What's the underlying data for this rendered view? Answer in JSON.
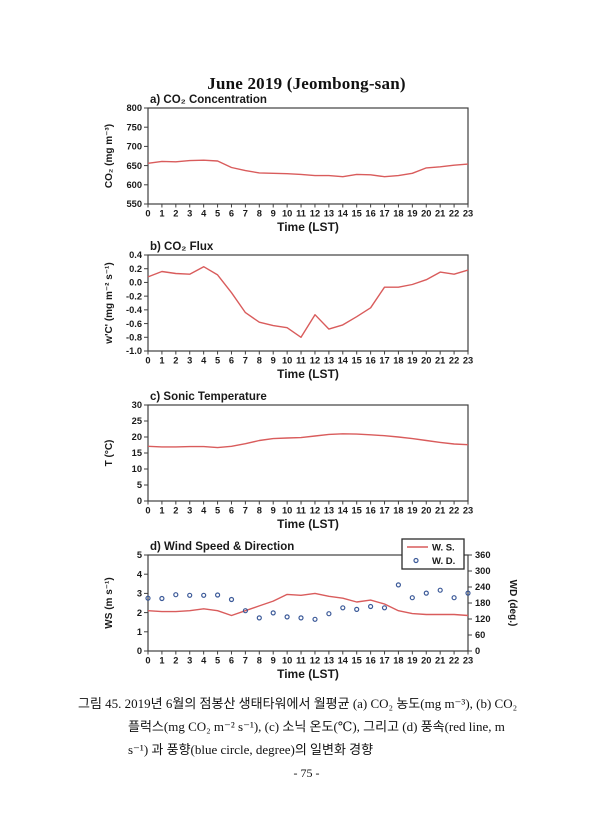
{
  "page": {
    "title": "June 2019 (Jeombong-san)",
    "page_number": "- 75 -"
  },
  "caption": {
    "lines": [
      "그림 45. 2019년 6월의 점봉산 생태타워에서 월평균 (a) CO₂ 농도(mg m⁻³), (b) CO₂",
      "플럭스(mg CO₂ m⁻² s⁻¹), (c) 소닉 온도(℃), 그리고 (d) 풍속(red line, m",
      "s⁻¹) 과 풍향(blue circle, degree)의 일변화 경향"
    ]
  },
  "colors": {
    "line_red": "#d95c5c",
    "marker_blue": "#3b5998",
    "axis": "#3f3f3f"
  },
  "chart_data": [
    {
      "id": "a",
      "type": "line",
      "title": "a) CO₂ Concentration",
      "xlabel": "Time (LST)",
      "ylabel": "CO₂ (mg m⁻³)",
      "x": [
        0,
        1,
        2,
        3,
        4,
        5,
        6,
        7,
        8,
        9,
        10,
        11,
        12,
        13,
        14,
        15,
        16,
        17,
        18,
        19,
        20,
        21,
        22,
        23
      ],
      "ylim": [
        550,
        800
      ],
      "yticks": [
        550,
        600,
        650,
        700,
        750,
        800
      ],
      "ytick_labels": [
        "550",
        "600",
        "650",
        "700",
        "750",
        "800"
      ],
      "grid": false,
      "series": [
        {
          "name": "CO2 concentration",
          "type": "line",
          "color": "#d95c5c",
          "values": [
            656,
            661,
            660,
            663,
            664,
            662,
            645,
            637,
            631,
            630,
            629,
            627,
            624,
            624,
            621,
            627,
            626,
            621,
            624,
            630,
            644,
            647,
            651,
            654
          ]
        }
      ]
    },
    {
      "id": "b",
      "type": "line",
      "title": "b) CO₂ Flux",
      "xlabel": "Time (LST)",
      "ylabel": "w'C' (mg m⁻² s⁻¹)",
      "x": [
        0,
        1,
        2,
        3,
        4,
        5,
        6,
        7,
        8,
        9,
        10,
        11,
        12,
        13,
        14,
        15,
        16,
        17,
        18,
        19,
        20,
        21,
        22,
        23
      ],
      "ylim": [
        -1.0,
        0.4
      ],
      "yticks": [
        -1.0,
        -0.8,
        -0.6,
        -0.4,
        -0.2,
        0.0,
        0.2,
        0.4
      ],
      "ytick_labels": [
        "-1.0",
        "-0.8",
        "-0.6",
        "-0.4",
        "-0.2",
        "0.0",
        "0.2",
        "0.4"
      ],
      "grid": false,
      "series": [
        {
          "name": "CO2 flux",
          "type": "line",
          "color": "#d95c5c",
          "values": [
            0.08,
            0.16,
            0.13,
            0.12,
            0.23,
            0.11,
            -0.15,
            -0.44,
            -0.58,
            -0.63,
            -0.66,
            -0.8,
            -0.47,
            -0.68,
            -0.62,
            -0.5,
            -0.37,
            -0.07,
            -0.07,
            -0.03,
            0.04,
            0.15,
            0.12,
            0.18
          ]
        }
      ]
    },
    {
      "id": "c",
      "type": "line",
      "title": "c) Sonic Temperature",
      "xlabel": "Time (LST)",
      "ylabel": "T (°C)",
      "x": [
        0,
        1,
        2,
        3,
        4,
        5,
        6,
        7,
        8,
        9,
        10,
        11,
        12,
        13,
        14,
        15,
        16,
        17,
        18,
        19,
        20,
        21,
        22,
        23
      ],
      "ylim": [
        0,
        30
      ],
      "yticks": [
        0,
        5,
        10,
        15,
        20,
        25,
        30
      ],
      "ytick_labels": [
        "0",
        "5",
        "10",
        "15",
        "20",
        "25",
        "30"
      ],
      "grid": false,
      "series": [
        {
          "name": "sonic temperature",
          "type": "line",
          "color": "#d95c5c",
          "values": [
            17.1,
            16.9,
            16.9,
            17.0,
            17.0,
            16.7,
            17.1,
            17.9,
            18.9,
            19.5,
            19.7,
            19.8,
            20.3,
            20.8,
            21.0,
            20.9,
            20.7,
            20.4,
            20.0,
            19.5,
            18.9,
            18.3,
            17.8,
            17.6
          ]
        }
      ]
    },
    {
      "id": "d",
      "type": "line+scatter",
      "title": "d) Wind Speed & Direction",
      "xlabel": "Time (LST)",
      "ylabel": "WS (m s⁻¹)",
      "ylabel_right": "WD (deg.)",
      "x": [
        0,
        1,
        2,
        3,
        4,
        5,
        6,
        7,
        8,
        9,
        10,
        11,
        12,
        13,
        14,
        15,
        16,
        17,
        18,
        19,
        20,
        21,
        22,
        23
      ],
      "ylim": [
        0,
        5
      ],
      "yticks": [
        0,
        1,
        2,
        3,
        4,
        5
      ],
      "ytick_labels": [
        "0",
        "1",
        "2",
        "3",
        "4",
        "5"
      ],
      "ylim_right": [
        0,
        360
      ],
      "yticks_right": [
        0,
        60,
        120,
        180,
        240,
        300,
        360
      ],
      "grid": false,
      "legend": [
        {
          "label": "W. S.",
          "marker": "line",
          "color": "#d95c5c"
        },
        {
          "label": "W. D.",
          "marker": "circle",
          "color": "#3b5998"
        }
      ],
      "series": [
        {
          "name": "W. S.",
          "type": "line",
          "axis": "left",
          "color": "#d95c5c",
          "values": [
            2.1,
            2.05,
            2.05,
            2.1,
            2.2,
            2.1,
            1.85,
            2.1,
            2.35,
            2.6,
            2.95,
            2.9,
            3.0,
            2.85,
            2.75,
            2.55,
            2.65,
            2.45,
            2.1,
            1.95,
            1.9,
            1.9,
            1.9,
            1.85
          ]
        },
        {
          "name": "W. D.",
          "type": "scatter",
          "axis": "right",
          "color": "#3b5998",
          "values": [
            198,
            197,
            211,
            209,
            209,
            210,
            193,
            151,
            124,
            143,
            128,
            124,
            119,
            140,
            162,
            156,
            167,
            162,
            248,
            200,
            217,
            228,
            200,
            217
          ]
        }
      ]
    }
  ]
}
